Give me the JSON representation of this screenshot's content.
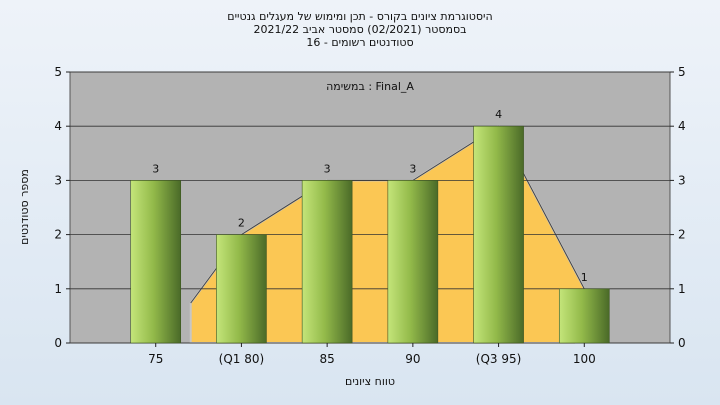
{
  "chart_data": {
    "type": "bar",
    "title_lines": [
      "היסטוגרמת ציונים בקורס - תכן ומימוש של מעגלים גנטיים",
      "בסמסטר (02/2021) סמסטר אביב 2021/22",
      "סטודנטים רשומים - 16"
    ],
    "xlabel": "טווח ציונים",
    "ylabel": "מספר סטודנטים",
    "legend_text": "במשימה : Final_A",
    "categories": [
      "75",
      "(Q1 80)",
      "85",
      "90",
      "(Q3 95)",
      "100"
    ],
    "values": [
      3,
      2,
      3,
      3,
      4,
      1
    ],
    "data_labels": [
      "3",
      "2",
      "3",
      "3",
      "4",
      "1"
    ],
    "ylim": [
      0,
      5
    ],
    "yticks": [
      "0",
      "1",
      "2",
      "3",
      "4",
      "5"
    ],
    "grid": true,
    "colors": {
      "plot_bg": "#b3b3b3",
      "bar_light": "#c4e57a",
      "bar_dark": "#4a6a28",
      "distribution_fill": "#ffc94f",
      "distribution_edge": "#c8c8c8",
      "grid": "#333333"
    }
  }
}
